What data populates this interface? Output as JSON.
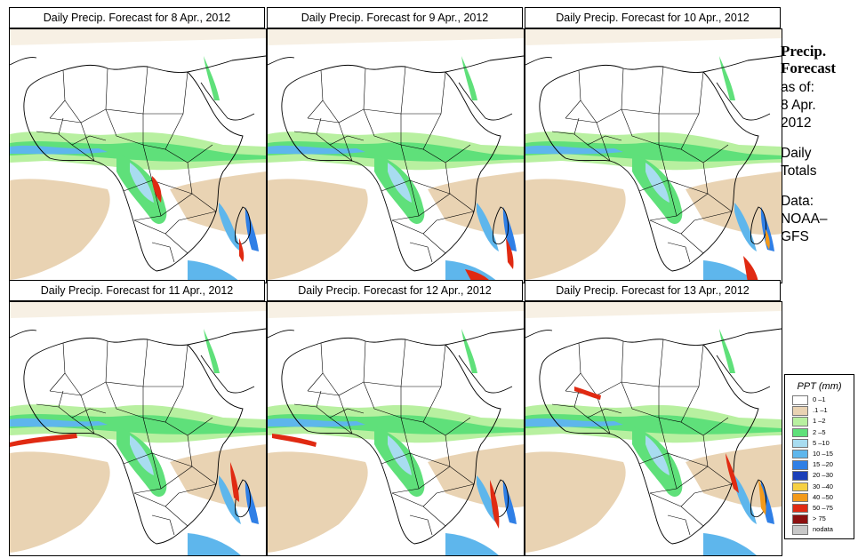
{
  "panels": [
    {
      "title": "Daily Precip. Forecast for  8 Apr., 2012"
    },
    {
      "title": "Daily Precip. Forecast for  9 Apr., 2012"
    },
    {
      "title": "Daily Precip. Forecast for  10 Apr., 2012"
    },
    {
      "title": "Daily Precip. Forecast for  11 Apr., 2012"
    },
    {
      "title": "Daily Precip. Forecast for  12 Apr., 2012"
    },
    {
      "title": "Daily Precip. Forecast for  13 Apr., 2012"
    }
  ],
  "sidebar": {
    "heading_line1": "Precip.",
    "heading_line2": "Forecast",
    "asof_label": "as of:",
    "asof_date_line1": "8 Apr.",
    "asof_date_line2": "2012",
    "totals_line1": "Daily",
    "totals_line2": "Totals",
    "data_line1": "Data:",
    "data_line2": "NOAA–",
    "data_line3": "GFS"
  },
  "legend": {
    "title": "PPT (mm)",
    "items": [
      {
        "label": "0 –1",
        "color": "#ffffff"
      },
      {
        "label": ".1 –1",
        "color": "#e9d3b3"
      },
      {
        "label": "1 –2",
        "color": "#b8f0a0"
      },
      {
        "label": "2 –5",
        "color": "#5fe07a"
      },
      {
        "label": "5 –10",
        "color": "#a8dcf0"
      },
      {
        "label": "10 –15",
        "color": "#5eb6ec"
      },
      {
        "label": "15 –20",
        "color": "#2f7fe6"
      },
      {
        "label": "20 –30",
        "color": "#1b3fb8"
      },
      {
        "label": "30 –40",
        "color": "#f6d043"
      },
      {
        "label": "40 –50",
        "color": "#f39a1b"
      },
      {
        "label": "50 –75",
        "color": "#e02a12"
      },
      {
        "label": "> 75",
        "color": "#8c1010"
      },
      {
        "label": "nodata",
        "color": "#c8c8c8"
      }
    ]
  }
}
